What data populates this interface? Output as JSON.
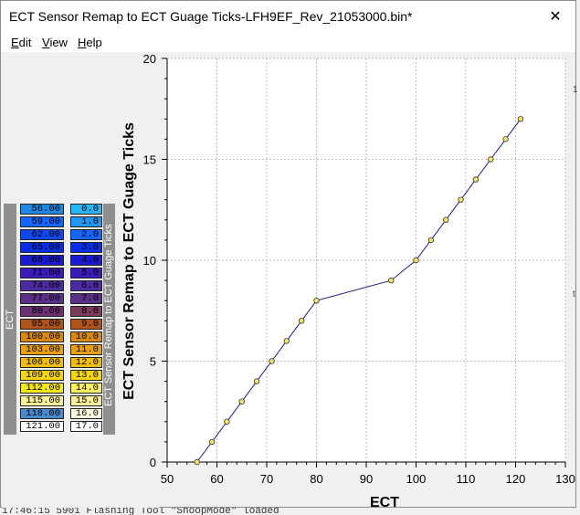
{
  "window": {
    "title": "ECT Sensor Remap to ECT Guage Ticks-LFH9EF_Rev_21053000.bin*",
    "close_glyph": "✕"
  },
  "menu": {
    "edit": {
      "underline": "E",
      "rest": "dit"
    },
    "view": {
      "underline": "V",
      "rest": "iew"
    },
    "help": {
      "underline": "H",
      "rest": "elp"
    }
  },
  "table": {
    "row_label": "ECT",
    "col_label": "ECT Sensor Remap to ECT Guage Ticks",
    "rows": [
      {
        "ect": "56.00",
        "ticks": "0.0",
        "ect_color": "#1e88e5",
        "ticks_color": "#29b6f6"
      },
      {
        "ect": "59.00",
        "ticks": "1.0",
        "ect_color": "#1565ff",
        "ticks_color": "#2196f3"
      },
      {
        "ect": "62.00",
        "ticks": "2.0",
        "ect_color": "#1247f0",
        "ticks_color": "#1565ff"
      },
      {
        "ect": "65.00",
        "ticks": "3.0",
        "ect_color": "#0a2ee8",
        "ticks_color": "#0a2ee8"
      },
      {
        "ect": "68.00",
        "ticks": "4.0",
        "ect_color": "#1a1ad0",
        "ticks_color": "#1a1ad0"
      },
      {
        "ect": "71.00",
        "ticks": "5.0",
        "ect_color": "#3a1ab8",
        "ticks_color": "#3a1ab8"
      },
      {
        "ect": "74.00",
        "ticks": "6.0",
        "ect_color": "#4a2aa0",
        "ticks_color": "#4a2aa0"
      },
      {
        "ect": "77.00",
        "ticks": "7.0",
        "ect_color": "#5a2f88",
        "ticks_color": "#5a2f88"
      },
      {
        "ect": "80.00",
        "ticks": "8.0",
        "ect_color": "#6a3070",
        "ticks_color": "#7a3a5a"
      },
      {
        "ect": "95.00",
        "ticks": "9.0",
        "ect_color": "#b0521c",
        "ticks_color": "#b0521c"
      },
      {
        "ect": "100.00",
        "ticks": "10.0",
        "ect_color": "#d88a10",
        "ticks_color": "#d88a10"
      },
      {
        "ect": "103.00",
        "ticks": "11.0",
        "ect_color": "#e8a010",
        "ticks_color": "#e8a010"
      },
      {
        "ect": "106.00",
        "ticks": "12.0",
        "ect_color": "#f0bc10",
        "ticks_color": "#f0bc10"
      },
      {
        "ect": "109.00",
        "ticks": "13.0",
        "ect_color": "#f5d412",
        "ticks_color": "#f5d412"
      },
      {
        "ect": "112.00",
        "ticks": "14.0",
        "ect_color": "#f8e81a",
        "ticks_color": "#fbf060"
      },
      {
        "ect": "115.00",
        "ticks": "15.0",
        "ect_color": "#fcf09a",
        "ticks_color": "#fcf09a"
      },
      {
        "ect": "118.00",
        "ticks": "16.0",
        "ect_color": "#4a8ad0",
        "ticks_color": "#fffbe0"
      },
      {
        "ect": "121.00",
        "ticks": "17.0",
        "ect_color": "#ffffff",
        "ticks_color": "#ffffff"
      }
    ]
  },
  "chart_data": {
    "type": "line",
    "title": "",
    "xlabel": "ECT",
    "ylabel": "ECT Sensor Remap to ECT Guage Ticks",
    "x": [
      56,
      59,
      62,
      65,
      68,
      71,
      74,
      77,
      80,
      95,
      100,
      103,
      106,
      109,
      112,
      115,
      118,
      121
    ],
    "y": [
      0,
      1,
      2,
      3,
      4,
      5,
      6,
      7,
      8,
      9,
      10,
      11,
      12,
      13,
      14,
      15,
      16,
      17
    ],
    "xlim": [
      50,
      130
    ],
    "ylim": [
      0,
      20
    ],
    "xticks": [
      "50",
      "60",
      "70",
      "80",
      "90",
      "100",
      "110",
      "120",
      "130"
    ],
    "yticks": [
      "0",
      "5",
      "10",
      "15",
      "20"
    ],
    "grid": true,
    "line_color": "#1c1c8c",
    "marker_color": "#f4e66a"
  },
  "edge_marks": {
    "top": "1",
    "bottom": "t"
  },
  "status": {
    "text": "17:46:15 5901 Flashing Tool \"ShoopMode\" loaded"
  }
}
